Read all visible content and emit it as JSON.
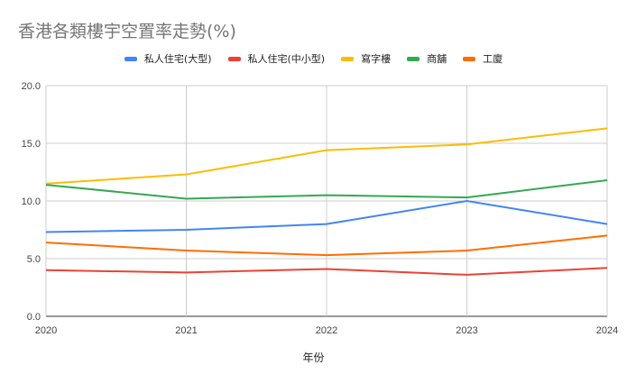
{
  "chart_data": {
    "type": "line",
    "title": "香港各類樓宇空置率走勢(%)",
    "xlabel": "年份",
    "ylabel": "",
    "x": [
      "2020",
      "2021",
      "2022",
      "2023",
      "2024"
    ],
    "ylim": [
      0,
      20
    ],
    "yticks": [
      "0.0",
      "5.0",
      "10.0",
      "15.0",
      "20.0"
    ],
    "grid": true,
    "legend": "top",
    "series": [
      {
        "name": "私人住宅(大型)",
        "color": "#4285f4",
        "values": [
          7.3,
          7.5,
          8.0,
          10.0,
          8.0
        ]
      },
      {
        "name": "私人住宅(中小型)",
        "color": "#ea4335",
        "values": [
          4.0,
          3.8,
          4.1,
          3.6,
          4.2
        ]
      },
      {
        "name": "寫字樓",
        "color": "#fbbc04",
        "values": [
          11.5,
          12.3,
          14.4,
          14.9,
          16.3
        ]
      },
      {
        "name": "商舖",
        "color": "#34a853",
        "values": [
          11.4,
          10.2,
          10.5,
          10.3,
          11.8
        ]
      },
      {
        "name": "工廈",
        "color": "#ff6d01",
        "values": [
          6.4,
          5.7,
          5.3,
          5.7,
          7.0
        ]
      }
    ]
  }
}
